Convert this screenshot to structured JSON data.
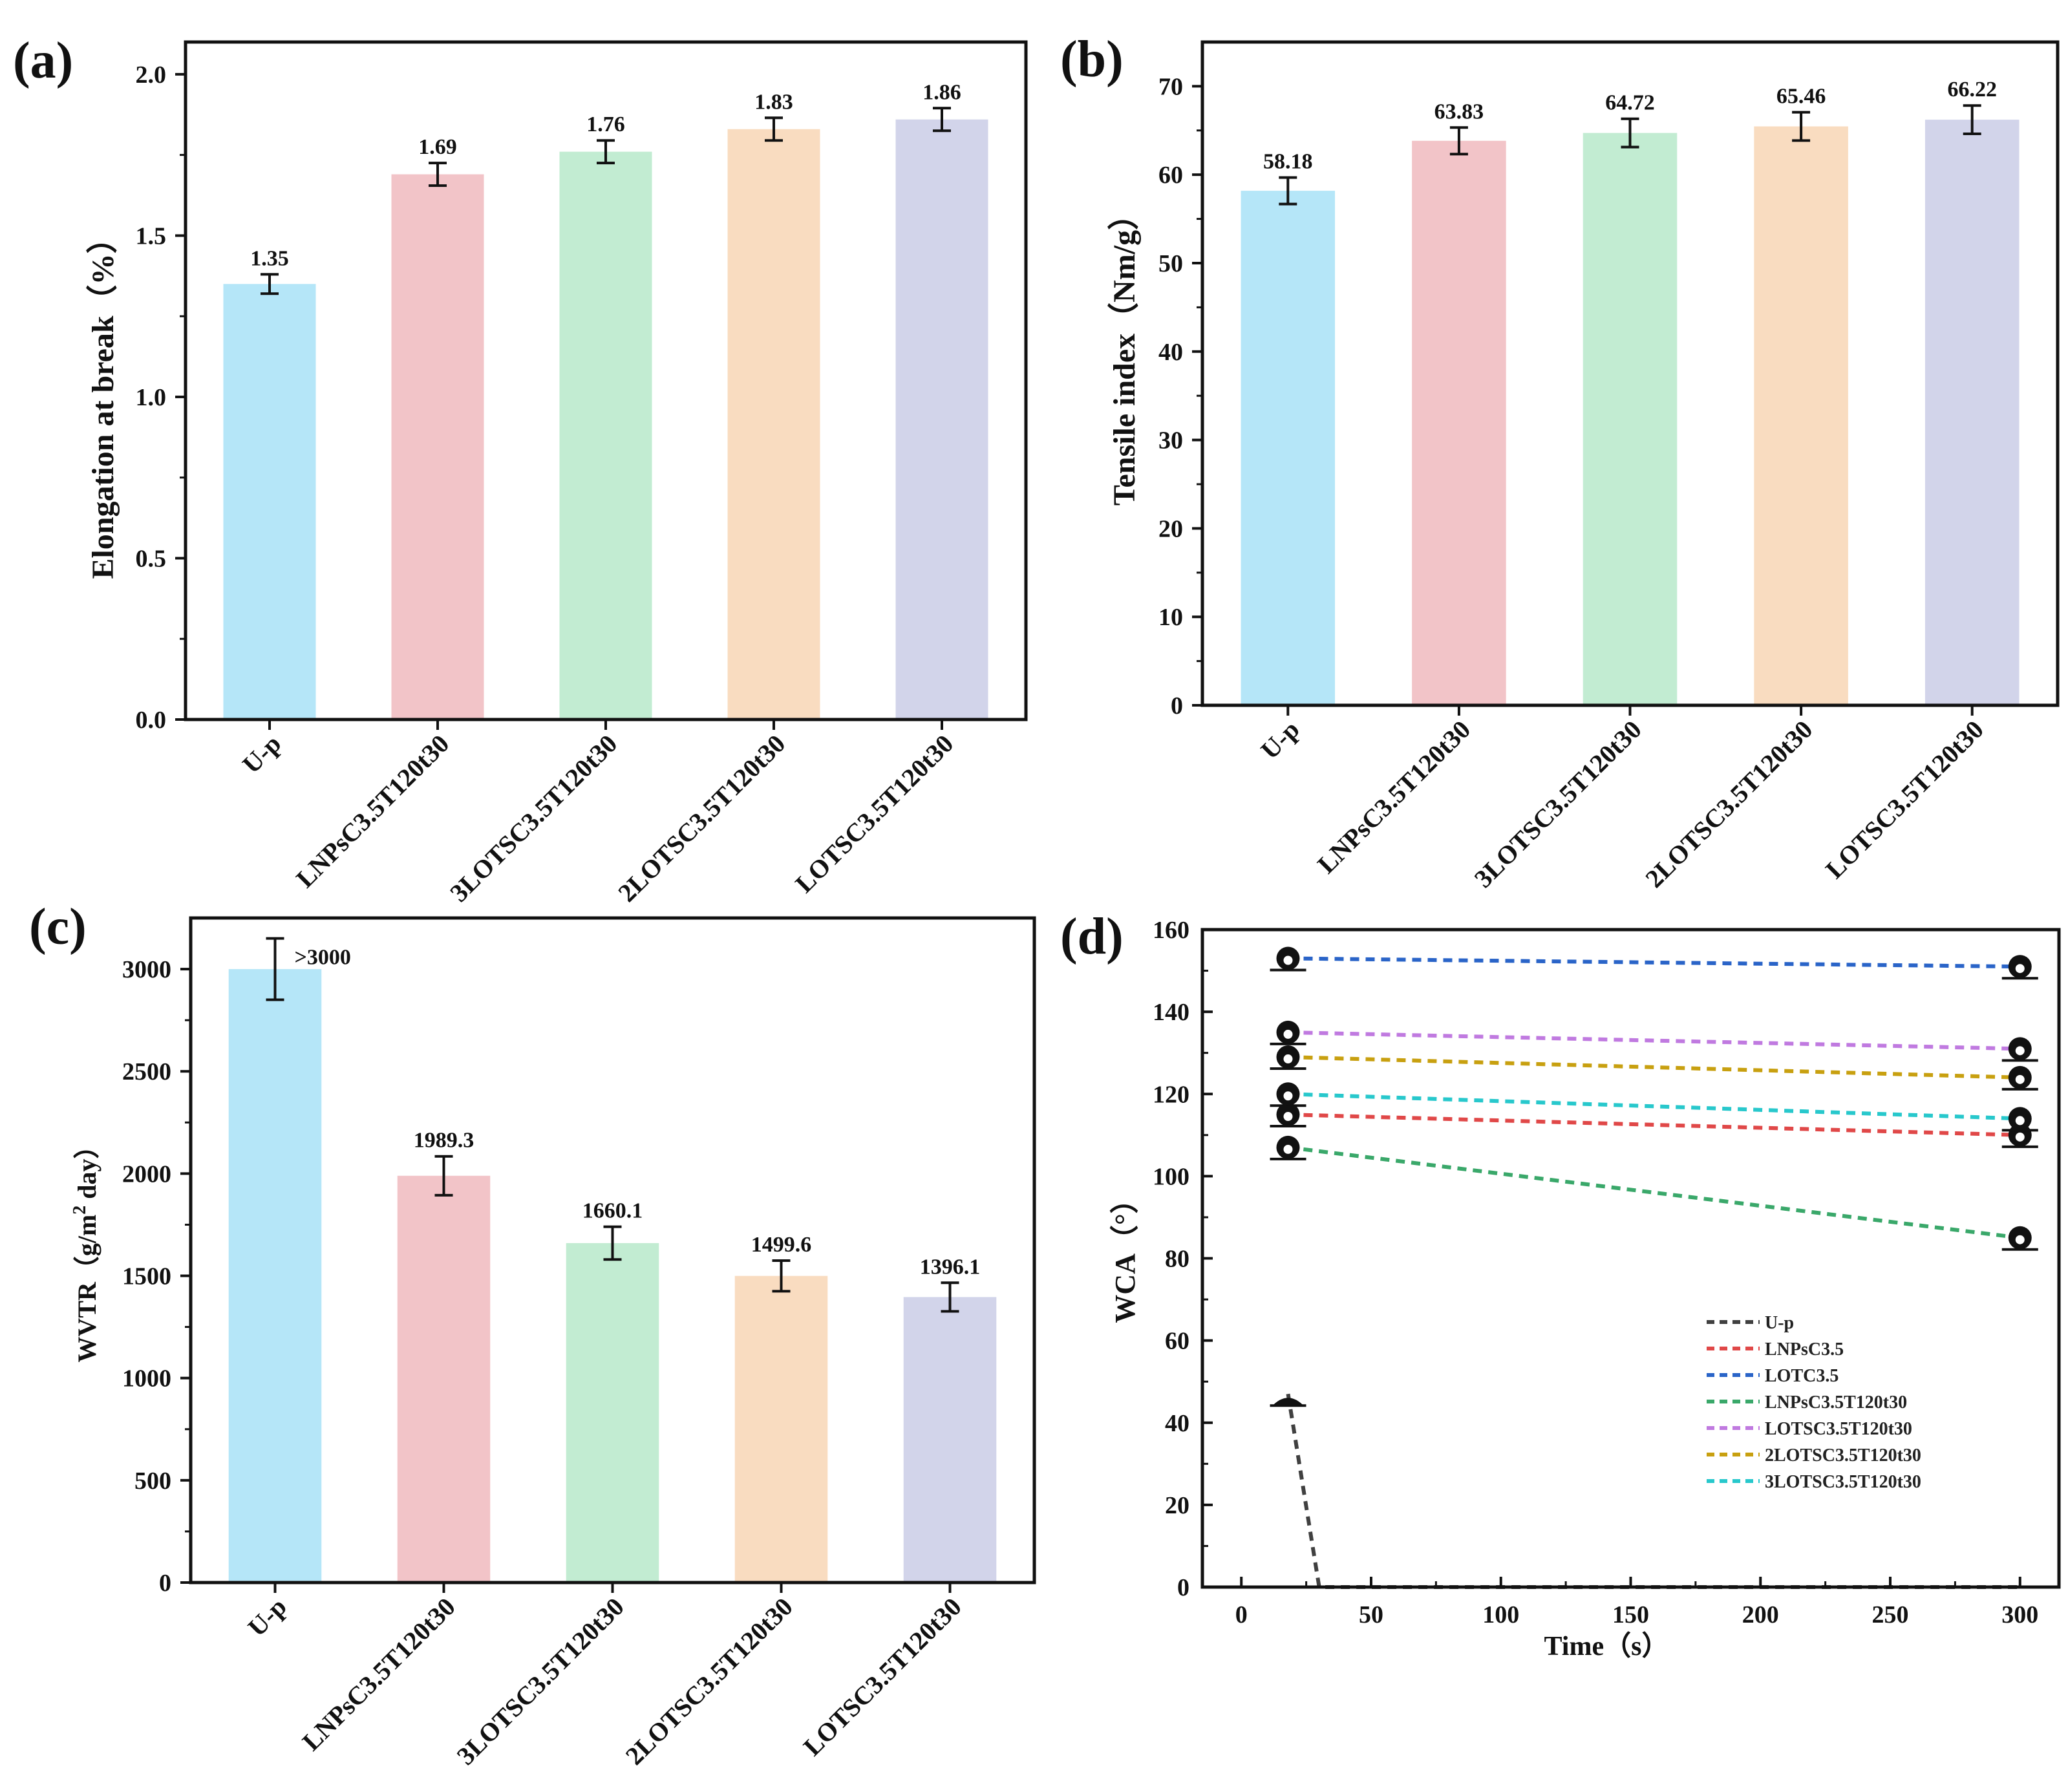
{
  "chart_data": [
    {
      "panel": "(a)",
      "type": "bar",
      "categories": [
        "U-p",
        "LNPsC3.5T120t30",
        "3LOTSC3.5T120t30",
        "2LOTSC3.5T120t30",
        "LOTSC3.5T120t30"
      ],
      "values": [
        1.35,
        1.69,
        1.76,
        1.83,
        1.86
      ],
      "errors": [
        0.03,
        0.035,
        0.035,
        0.035,
        0.035
      ],
      "labels": [
        "1.35",
        "1.69",
        "1.76",
        "1.83",
        "1.86"
      ],
      "colors": [
        "#b5e6f8",
        "#f2c4c8",
        "#c2ecd2",
        "#f9dcc0",
        "#d2d4ea"
      ],
      "ylabel": "Elongation at break（%）",
      "ylim": [
        0,
        2.1
      ],
      "yticks": [
        0.0,
        0.5,
        1.0,
        1.5,
        2.0
      ],
      "ytick_labels": [
        "0.0",
        "0.5",
        "1.0",
        "1.5",
        "2.0"
      ]
    },
    {
      "panel": "(b)",
      "type": "bar",
      "categories": [
        "U-p",
        "LNPsC3.5T120t30",
        "3LOTSC3.5T120t30",
        "2LOTSC3.5T120t30",
        "LOTSC3.5T120t30"
      ],
      "values": [
        58.18,
        63.83,
        64.72,
        65.46,
        66.22
      ],
      "errors": [
        1.5,
        1.5,
        1.6,
        1.6,
        1.6
      ],
      "labels": [
        "58.18",
        "63.83",
        "64.72",
        "65.46",
        "66.22"
      ],
      "colors": [
        "#b5e6f8",
        "#f2c4c8",
        "#c2ecd2",
        "#f9dcc0",
        "#d2d4ea"
      ],
      "ylabel": "Tensile index（Nm/g）",
      "ylim": [
        0,
        75
      ],
      "yticks": [
        0,
        10,
        20,
        30,
        40,
        50,
        60,
        70
      ],
      "ytick_labels": [
        "0",
        "10",
        "20",
        "30",
        "40",
        "50",
        "60",
        "70"
      ]
    },
    {
      "panel": "(c)",
      "type": "bar",
      "categories": [
        "U-p",
        "LNPsC3.5T120t30",
        "3LOTSC3.5T120t30",
        "2LOTSC3.5T120t30",
        "LOTSC3.5T120t30"
      ],
      "values": [
        3000,
        1989.3,
        1660.1,
        1499.6,
        1396.1
      ],
      "errors": [
        150,
        95,
        80,
        75,
        70
      ],
      "labels": [
        ">3000",
        "1989.3",
        "1660.1",
        "1499.6",
        "1396.1"
      ],
      "colors": [
        "#b5e6f8",
        "#f2c4c8",
        "#c2ecd2",
        "#f9dcc0",
        "#d2d4ea"
      ],
      "ylabel_parts": [
        "WVTR（g/m",
        "2",
        " day）"
      ],
      "ylim": [
        0,
        3250
      ],
      "yticks": [
        0,
        500,
        1000,
        1500,
        2000,
        2500,
        3000
      ],
      "ytick_labels": [
        "0",
        "500",
        "1000",
        "1500",
        "2000",
        "2500",
        "3000"
      ]
    },
    {
      "panel": "(d)",
      "type": "line",
      "xlabel": "Time（s）",
      "ylabel": "WCA（°）",
      "xlim": [
        -15,
        315
      ],
      "ylim": [
        0,
        160
      ],
      "xticks": [
        0,
        50,
        100,
        150,
        200,
        250,
        300
      ],
      "xtick_labels": [
        "0",
        "50",
        "100",
        "150",
        "200",
        "250",
        "300"
      ],
      "yticks": [
        0,
        20,
        40,
        60,
        80,
        100,
        120,
        140,
        160
      ],
      "ytick_labels": [
        "0",
        "20",
        "40",
        "60",
        "80",
        "100",
        "120",
        "140",
        "160"
      ],
      "legend_position": "lower-right",
      "series": [
        {
          "name": "U-p",
          "color": "#404040",
          "x": [
            18,
            30,
            300
          ],
          "y": [
            47,
            0,
            0
          ]
        },
        {
          "name": "LNPsC3.5",
          "color": "#e04848",
          "x": [
            18,
            300
          ],
          "y": [
            115,
            110
          ]
        },
        {
          "name": "LOTC3.5",
          "color": "#2a64c8",
          "x": [
            18,
            300
          ],
          "y": [
            153,
            151
          ]
        },
        {
          "name": "LNPsC3.5T120t30",
          "color": "#3aa86a",
          "x": [
            18,
            300
          ],
          "y": [
            107,
            85
          ]
        },
        {
          "name": "LOTSC3.5T120t30",
          "color": "#c07ae0",
          "x": [
            18,
            300
          ],
          "y": [
            135,
            131
          ]
        },
        {
          "name": "2LOTSC3.5T120t30",
          "color": "#c8a010",
          "x": [
            18,
            300
          ],
          "y": [
            129,
            124
          ]
        },
        {
          "name": "3LOTSC3.5T120t30",
          "color": "#28c8cc",
          "x": [
            18,
            300
          ],
          "y": [
            120,
            114
          ]
        }
      ]
    }
  ]
}
